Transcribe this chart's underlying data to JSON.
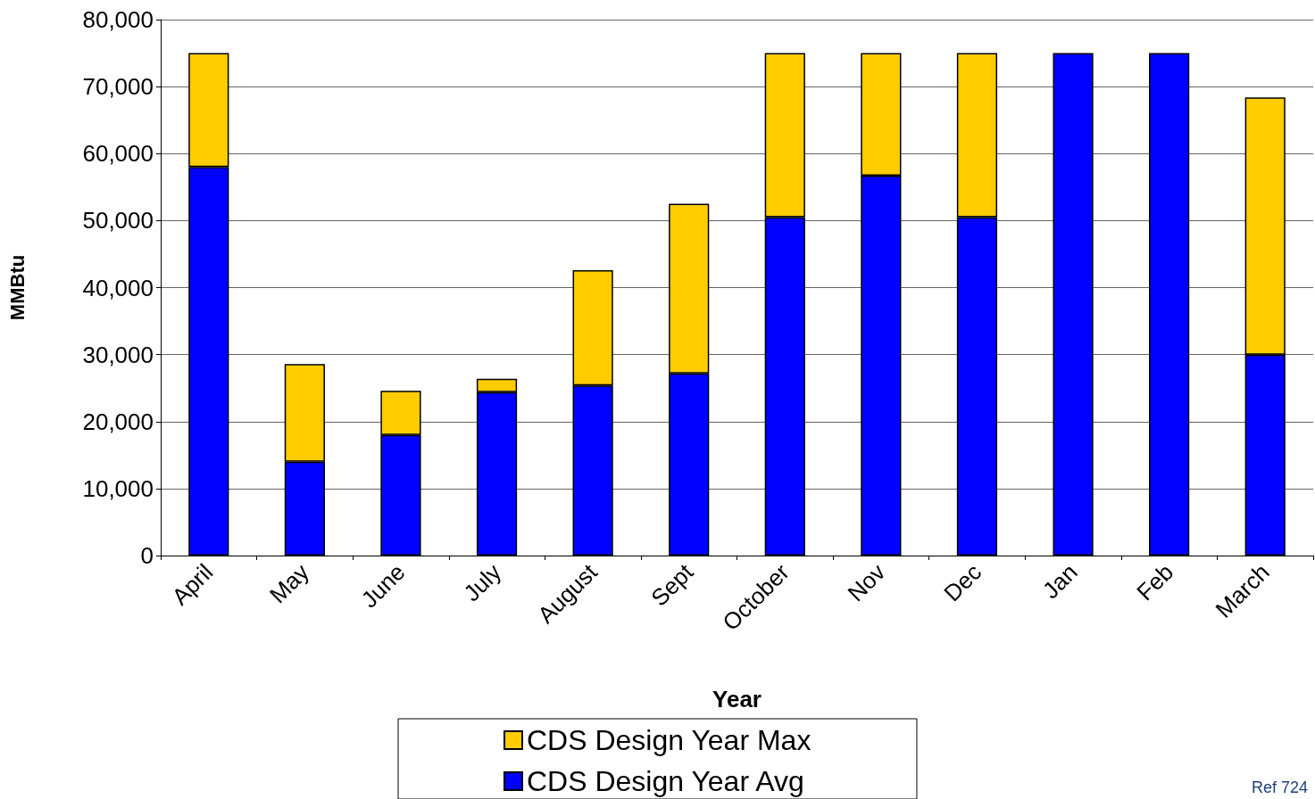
{
  "chart_data": {
    "type": "bar",
    "stacked": true,
    "xlabel": "Year",
    "ylabel": "MMBtu",
    "categories": [
      "April",
      "May",
      "June",
      "July",
      "August",
      "Sept",
      "October",
      "Nov",
      "Dec",
      "Jan",
      "Feb",
      "March"
    ],
    "series": [
      {
        "name": "CDS Design Year Avg",
        "color": "#0000ff",
        "values": [
          58000,
          14000,
          18000,
          24400,
          25400,
          27200,
          50500,
          56700,
          50500,
          75000,
          75000,
          30000
        ]
      },
      {
        "name": "CDS Design Year Max",
        "color": "#ffcc00",
        "values": [
          17000,
          14600,
          6600,
          2000,
          17200,
          25300,
          24500,
          18300,
          24500,
          null,
          null,
          38400
        ]
      }
    ],
    "ylim": [
      0,
      80000
    ],
    "yticks": [
      0,
      {
        "value": 10000,
        "label": "10,000"
      },
      {
        "value": 20000,
        "label": "20,000"
      },
      {
        "value": 30000,
        "label": "30,000"
      },
      {
        "value": 40000,
        "label": "40,000"
      },
      {
        "value": 50000,
        "label": "50,000"
      },
      {
        "value": 60000,
        "label": "60,000"
      },
      {
        "value": 70000,
        "label": "70,000"
      },
      {
        "value": 80000,
        "label": "80,000"
      }
    ],
    "grid": "y",
    "legend": "bottom",
    "annotations": [
      "Ref 724"
    ]
  }
}
